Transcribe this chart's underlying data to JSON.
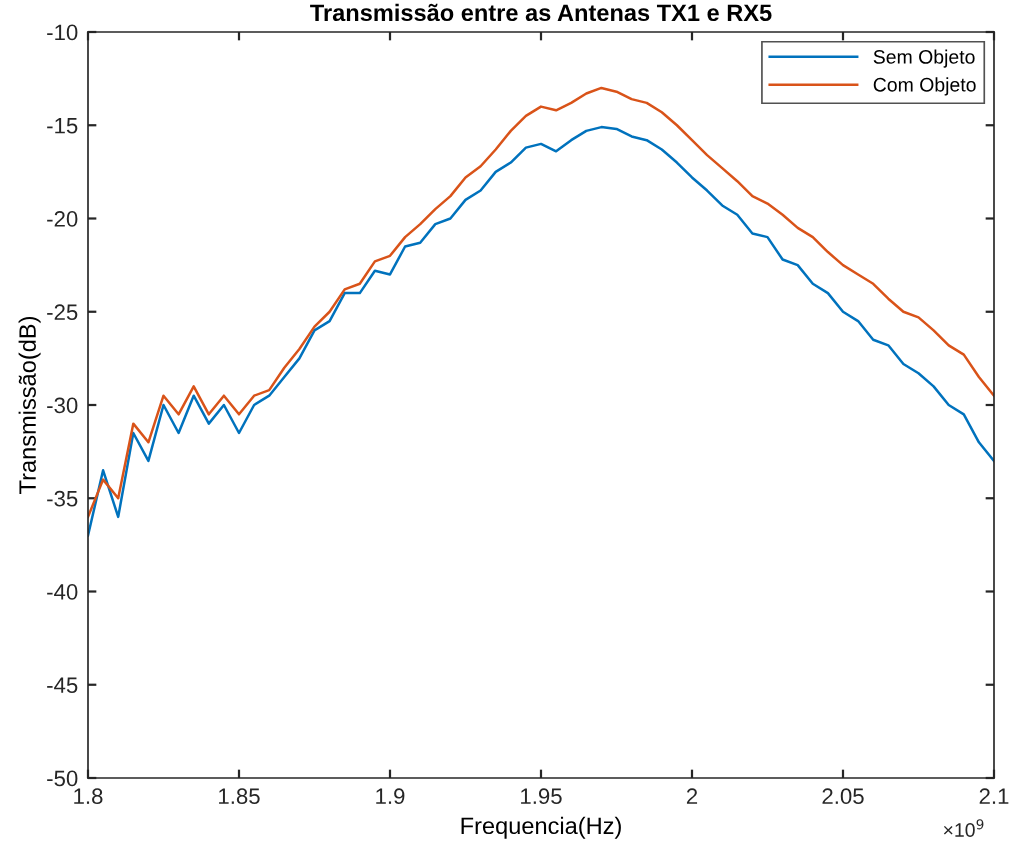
{
  "chart_data": {
    "type": "line",
    "title": "Transmissão entre as Antenas TX1 e RX5",
    "xlabel": "Frequencia(Hz)",
    "ylabel": "Transmissão(dB)",
    "annotations": [
      "×10$^{9}$"
    ],
    "x": [
      1.8,
      1.805,
      1.81,
      1.815,
      1.82,
      1.825,
      1.83,
      1.835,
      1.84,
      1.845,
      1.85,
      1.855,
      1.86,
      1.865,
      1.87,
      1.875,
      1.88,
      1.885,
      1.89,
      1.895,
      1.9,
      1.905,
      1.91,
      1.915,
      1.92,
      1.925,
      1.93,
      1.935,
      1.94,
      1.945,
      1.95,
      1.955,
      1.96,
      1.965,
      1.97,
      1.975,
      1.98,
      1.985,
      1.99,
      1.995,
      2,
      2.005,
      2.01,
      2.015,
      2.02,
      2.025,
      2.03,
      2.035,
      2.04,
      2.045,
      2.05,
      2.055,
      2.06,
      2.065,
      2.07,
      2.075,
      2.08,
      2.085,
      2.09,
      2.095,
      2.1
    ],
    "series": [
      {
        "name": "Sem Objeto",
        "color": "#0072bd",
        "values": [
          -37,
          -33.5,
          -36,
          -31.5,
          -33,
          -30,
          -31.5,
          -29.5,
          -31,
          -30,
          -31.5,
          -30,
          -29.5,
          -28.5,
          -27.5,
          -26,
          -25.5,
          -24,
          -24,
          -22.8,
          -23,
          -21.5,
          -21.3,
          -20.3,
          -20,
          -19,
          -18.5,
          -17.5,
          -17,
          -16.2,
          -16,
          -16.4,
          -15.8,
          -15.3,
          -15.1,
          -15.2,
          -15.6,
          -15.8,
          -16.3,
          -17,
          -17.8,
          -18.5,
          -19.3,
          -19.8,
          -20.8,
          -21,
          -22.2,
          -22.5,
          -23.5,
          -24,
          -25,
          -25.5,
          -26.5,
          -26.8,
          -27.8,
          -28.3,
          -29,
          -30,
          -30.5,
          -32,
          -33
        ]
      },
      {
        "name": "Com Objeto",
        "color": "#d95319",
        "values": [
          -36,
          -34,
          -35,
          -31,
          -32,
          -29.5,
          -30.5,
          -29,
          -30.5,
          -29.5,
          -30.5,
          -29.5,
          -29.2,
          -28,
          -27,
          -25.8,
          -25,
          -23.8,
          -23.5,
          -22.3,
          -22,
          -21,
          -20.3,
          -19.5,
          -18.8,
          -17.8,
          -17.2,
          -16.3,
          -15.3,
          -14.5,
          -14,
          -14.2,
          -13.8,
          -13.3,
          -13,
          -13.2,
          -13.6,
          -13.8,
          -14.3,
          -15,
          -15.8,
          -16.6,
          -17.3,
          -18,
          -18.8,
          -19.2,
          -19.8,
          -20.5,
          -21,
          -21.8,
          -22.5,
          -23,
          -23.5,
          -24.3,
          -25,
          -25.3,
          -26,
          -26.8,
          -27.3,
          -28.5,
          -29.5
        ]
      }
    ],
    "xlim": [
      1.8,
      2.1
    ],
    "xticks": [
      1.8,
      1.85,
      1.9,
      1.95,
      2,
      2.05,
      2.1
    ],
    "ylim": [
      -50,
      -10
    ],
    "yticks": [
      -50,
      -45,
      -40,
      -35,
      -30,
      -25,
      -20,
      -15,
      -10
    ],
    "legend": "top right",
    "grid": false,
    "marker": "none",
    "line_style": "solid"
  }
}
